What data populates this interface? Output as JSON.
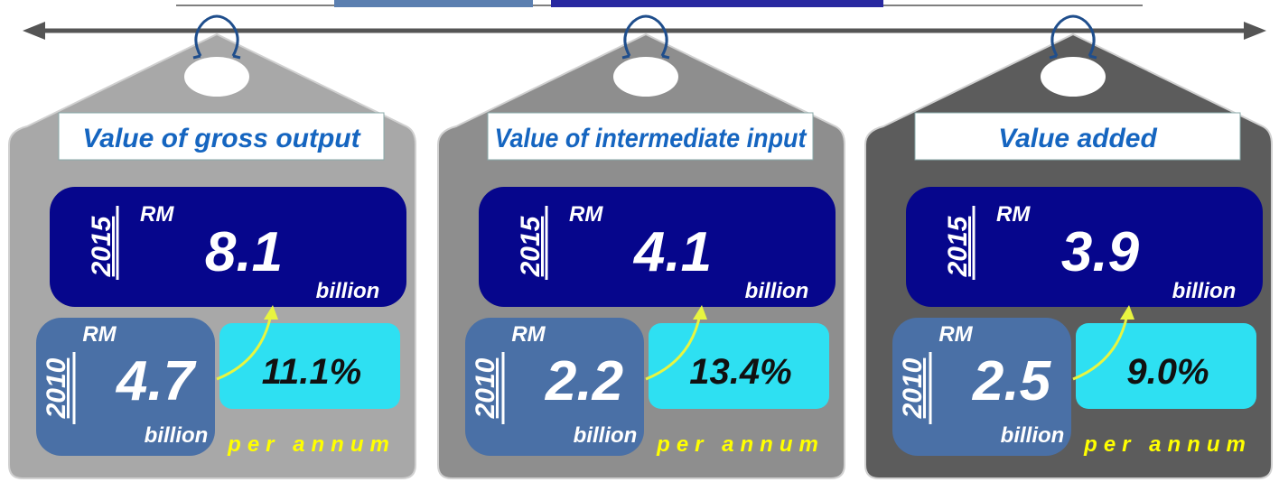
{
  "cards": [
    {
      "title": "Value of gross output",
      "recent": {
        "year": "2015",
        "currency": "RM",
        "value": "8.1",
        "unit": "billion"
      },
      "base": {
        "year": "2010",
        "currency": "RM",
        "value": "4.7",
        "unit": "billion"
      },
      "growth": "11.1%",
      "growth_note": "per annum"
    },
    {
      "title": "Value of intermediate input",
      "recent": {
        "year": "2015",
        "currency": "RM",
        "value": "4.1",
        "unit": "billion"
      },
      "base": {
        "year": "2010",
        "currency": "RM",
        "value": "2.2",
        "unit": "billion"
      },
      "growth": "13.4%",
      "growth_note": "per annum"
    },
    {
      "title": "Value added",
      "recent": {
        "year": "2015",
        "currency": "RM",
        "value": "3.9",
        "unit": "billion"
      },
      "base": {
        "year": "2010",
        "currency": "RM",
        "value": "2.5",
        "unit": "billion"
      },
      "growth": "9.0%",
      "growth_note": "per annum"
    }
  ]
}
